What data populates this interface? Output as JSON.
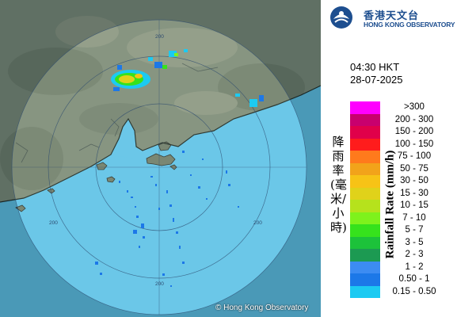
{
  "map": {
    "copyright": "© Hong Kong Observatory",
    "range_labels": [
      "200",
      "200",
      "200",
      "200"
    ],
    "colors": {
      "sea": "#5fc3e6",
      "land": "#7f8f7a",
      "range_ring": "#2c4a6e"
    }
  },
  "header": {
    "logo_cn": "香港天文台",
    "logo_en": "HONG KONG OBSERVATORY",
    "time": "04:30 HKT",
    "date": "28-07-2025"
  },
  "legend": {
    "title_cn": "降雨率(毫米/小時)",
    "title_en": "Rainfall Rate (mm/h)",
    "items": [
      {
        "label": ">300",
        "color": "#ff00ff"
      },
      {
        "label": "200 - 300",
        "color": "#c8006e"
      },
      {
        "label": "150 - 200",
        "color": "#e0004a"
      },
      {
        "label": "100 - 150",
        "color": "#ff1c1c"
      },
      {
        "label": "75 - 100",
        "color": "#ff7a1c"
      },
      {
        "label": "50 - 75",
        "color": "#f2a31a"
      },
      {
        "label": "30 - 50",
        "color": "#f7c316"
      },
      {
        "label": "15 - 30",
        "color": "#e0d21a"
      },
      {
        "label": "10 - 15",
        "color": "#b6e21c"
      },
      {
        "label": "7 - 10",
        "color": "#7ef21c"
      },
      {
        "label": "5 - 7",
        "color": "#36e21c"
      },
      {
        "label": "3 - 5",
        "color": "#1cc23a"
      },
      {
        "label": "2 - 3",
        "color": "#1c9a52"
      },
      {
        "label": "1 - 2",
        "color": "#3c8cf2"
      },
      {
        "label": "0.50 - 1",
        "color": "#1c78e8"
      },
      {
        "label": "0.15 - 0.50",
        "color": "#1ccaf2"
      }
    ]
  }
}
